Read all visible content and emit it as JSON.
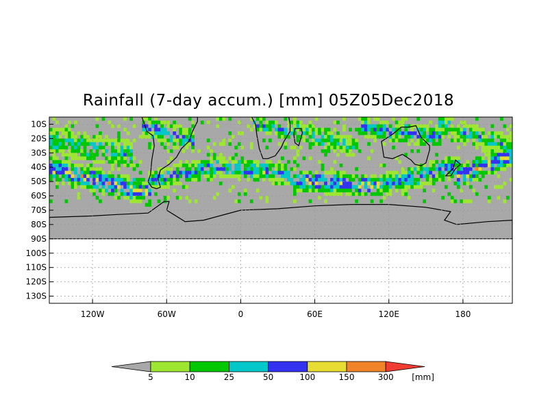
{
  "title": "Rainfall (7-day accum.) [mm] 05Z05Dec2018",
  "map": {
    "projection": "equirectangular",
    "lon_range": [
      -155,
      220
    ],
    "lat_range": [
      -135,
      -5
    ],
    "data_extent_lat_south": -90,
    "y_ticks": [
      {
        "lat": -10,
        "label": "10S"
      },
      {
        "lat": -20,
        "label": "20S"
      },
      {
        "lat": -30,
        "label": "30S"
      },
      {
        "lat": -40,
        "label": "40S"
      },
      {
        "lat": -50,
        "label": "50S"
      },
      {
        "lat": -60,
        "label": "60S"
      },
      {
        "lat": -70,
        "label": "70S"
      },
      {
        "lat": -80,
        "label": "80S"
      },
      {
        "lat": -90,
        "label": "90S"
      },
      {
        "lat": -100,
        "label": "100S"
      },
      {
        "lat": -110,
        "label": "110S"
      },
      {
        "lat": -120,
        "label": "120S"
      },
      {
        "lat": -130,
        "label": "130S"
      }
    ],
    "x_ticks": [
      {
        "lon": -120,
        "label": "120W"
      },
      {
        "lon": -60,
        "label": "60W"
      },
      {
        "lon": 0,
        "label": "0"
      },
      {
        "lon": 60,
        "label": "60E"
      },
      {
        "lon": 120,
        "label": "120E"
      },
      {
        "lon": 180,
        "label": "180"
      }
    ],
    "colors": {
      "no_rain": "#a8a8a8",
      "coast": "#000000",
      "grid": "#999999"
    }
  },
  "colorbar": {
    "unit": "[mm]",
    "levels": [
      "5",
      "10",
      "25",
      "50",
      "100",
      "150",
      "300"
    ],
    "colors": [
      "#a8a8a8",
      "#9ee632",
      "#00c800",
      "#00c8c8",
      "#3232f0",
      "#e6dc32",
      "#f08228",
      "#f03c32"
    ]
  }
}
